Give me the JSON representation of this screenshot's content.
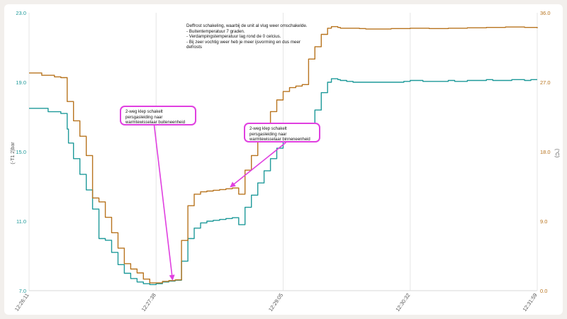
{
  "chart_data": {
    "type": "line",
    "y_left": {
      "label": "(-T1 2)bar",
      "range": [
        7.0,
        23.0
      ],
      "ticks": [
        "7.0",
        "11.0",
        "15.0",
        "19.0",
        "23.0"
      ],
      "color": "#1f9a9a"
    },
    "y_right": {
      "label": "(°C)",
      "range": [
        0.0,
        36.0
      ],
      "ticks": [
        "0.0",
        "9.0",
        "18.0",
        "27.0",
        "36.0"
      ],
      "color": "#b8741f"
    },
    "x_ticks": [
      "12:26:11",
      "12:27:38",
      "12:29:05",
      "12:30:32",
      "12:31:59"
    ],
    "grid": "vertical",
    "series": [
      {
        "color": "#1f9a9a",
        "axis": "left",
        "x": [
          0,
          0.15,
          0.25,
          0.3,
          0.31,
          0.35,
          0.4,
          0.45,
          0.5,
          0.55,
          0.6,
          0.65,
          0.7,
          0.75,
          0.8,
          0.85,
          0.9,
          0.95,
          1.0,
          1.05,
          1.1,
          1.15,
          1.2,
          1.25,
          1.3,
          1.35,
          1.4,
          1.45,
          1.5,
          1.55,
          1.6,
          1.65,
          1.7,
          1.75,
          1.8,
          1.85,
          1.9,
          1.95,
          2.0,
          2.05,
          2.1,
          2.15,
          2.2,
          2.25,
          2.3,
          2.35,
          2.38,
          2.4,
          2.43,
          2.45,
          2.5,
          2.55,
          2.6,
          2.65,
          2.7,
          2.75,
          2.8,
          2.85,
          2.9,
          2.95,
          3.0,
          3.05,
          3.1,
          3.15,
          3.2,
          3.25,
          3.3,
          3.35,
          3.4,
          3.45,
          3.5,
          3.55,
          3.6,
          3.62,
          3.65,
          3.7,
          3.75,
          3.8,
          3.85,
          3.9,
          3.95,
          4.0
        ],
        "y": [
          17.5,
          17.3,
          17.2,
          16.3,
          15.5,
          14.6,
          13.7,
          12.8,
          11.7,
          10.0,
          9.9,
          9.2,
          8.5,
          8.0,
          7.7,
          7.5,
          7.4,
          7.35,
          7.4,
          7.5,
          7.55,
          7.6,
          8.7,
          10.0,
          10.6,
          10.9,
          11.0,
          11.05,
          11.1,
          11.15,
          11.2,
          10.8,
          11.8,
          12.5,
          13.2,
          13.9,
          14.6,
          15.2,
          15.7,
          16.1,
          16.3,
          16.4,
          16.5,
          17.4,
          18.4,
          19.0,
          19.2,
          19.2,
          19.15,
          19.1,
          19.05,
          19.0,
          19.0,
          19.0,
          19.0,
          19.0,
          19.0,
          19.0,
          19.0,
          19.05,
          19.1,
          19.1,
          19.05,
          19.05,
          19.05,
          19.05,
          19.1,
          19.05,
          19.05,
          19.1,
          19.1,
          19.1,
          19.15,
          19.15,
          19.1,
          19.1,
          19.1,
          19.15,
          19.15,
          19.1,
          19.15,
          19.15
        ]
      },
      {
        "color": "#b8741f",
        "axis": "right",
        "x": [
          0,
          0.1,
          0.2,
          0.25,
          0.3,
          0.35,
          0.4,
          0.45,
          0.5,
          0.55,
          0.6,
          0.65,
          0.7,
          0.75,
          0.8,
          0.85,
          0.9,
          0.95,
          1.0,
          1.05,
          1.1,
          1.15,
          1.2,
          1.25,
          1.3,
          1.35,
          1.4,
          1.45,
          1.5,
          1.55,
          1.6,
          1.65,
          1.7,
          1.75,
          1.8,
          1.85,
          1.9,
          1.95,
          2.0,
          2.05,
          2.1,
          2.15,
          2.2,
          2.25,
          2.3,
          2.35,
          2.38,
          2.4,
          2.43,
          2.45,
          2.5,
          2.55,
          2.6,
          2.65,
          2.7,
          2.75,
          2.8,
          2.85,
          2.9,
          2.95,
          3.0,
          3.05,
          3.1,
          3.15,
          3.2,
          3.25,
          3.3,
          3.35,
          3.4,
          3.45,
          3.5,
          3.55,
          3.6,
          3.65,
          3.7,
          3.75,
          3.8,
          3.85,
          3.9,
          3.95,
          4.0
        ],
        "y": [
          28.2,
          27.9,
          27.7,
          27.6,
          24.5,
          22.0,
          20.0,
          17.5,
          12.0,
          11.5,
          9.5,
          7.5,
          5.5,
          3.5,
          2.8,
          2.3,
          1.5,
          1.0,
          1.0,
          1.2,
          1.3,
          1.4,
          6.5,
          11.0,
          12.5,
          12.8,
          12.9,
          13.0,
          13.1,
          13.2,
          13.3,
          12.5,
          15.6,
          17.5,
          19.5,
          21.5,
          23.2,
          24.7,
          25.8,
          26.3,
          26.5,
          26.7,
          30.0,
          31.6,
          33.2,
          34.0,
          34.2,
          34.2,
          34.1,
          34.0,
          34.0,
          34.0,
          33.95,
          33.9,
          33.9,
          33.9,
          33.9,
          33.95,
          33.95,
          33.95,
          34.0,
          34.0,
          34.0,
          33.95,
          33.95,
          33.95,
          34.0,
          34.0,
          34.0,
          34.05,
          34.05,
          34.05,
          34.1,
          34.1,
          34.1,
          34.15,
          34.15,
          34.15,
          34.1,
          34.1,
          34.0
        ]
      }
    ],
    "annotations": [
      {
        "lines": [
          "2-weg klep schakelt persgasleiding naar",
          "warmtewisselaar buiteneenheid"
        ],
        "points_to_x": 1.14,
        "color": "#e040e0"
      },
      {
        "lines": [
          "2-weg klep schakelt persgasleiding naar",
          "warmtewisselaar binneneenheid"
        ],
        "points_to_x": 1.6,
        "color": "#e040e0"
      }
    ]
  },
  "note": {
    "lines": [
      "Deffrost schakeling, waarbij de unit al vlug weer omschakelde.",
      "- Buitentemperatuur 7 graden.",
      "- Verdampingstemperatuur lag rond de 0 celcius.",
      "- Bij zeer vochtig weer heb je meer ijsvorming en dus meer",
      "defrosts"
    ]
  }
}
